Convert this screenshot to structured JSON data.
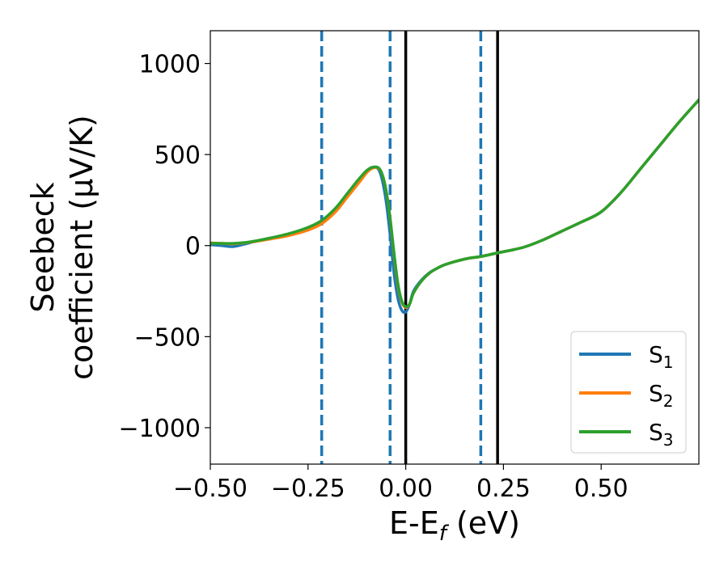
{
  "chart_data": {
    "type": "line",
    "title": "",
    "xlabel": "E-E",
    "xlabel_sub": "f",
    "xlabel_unit": " (eV)",
    "ylabel_line1": "Seebeck",
    "ylabel_line2": "coefficient  (μV/K)",
    "xlim": [
      -0.5,
      0.75
    ],
    "ylim": [
      -1200,
      1180
    ],
    "xticks": [
      -0.5,
      -0.25,
      0.0,
      0.25,
      0.5
    ],
    "xtick_labels": [
      "−0.50",
      "−0.25",
      "0.00",
      "0.25",
      "0.50"
    ],
    "yticks": [
      1000,
      500,
      0,
      -500,
      -1000
    ],
    "ytick_labels": [
      "1000",
      "500",
      "0",
      "−500",
      "−1000"
    ],
    "grid": false,
    "legend_position": "bottom-right",
    "vlines_dashed": {
      "color": "#1f77b4",
      "x": [
        -0.215,
        -0.04,
        0.192
      ]
    },
    "vlines_solid": {
      "color": "#000000",
      "x": [
        0.0,
        0.235
      ]
    },
    "series": [
      {
        "name": "S",
        "name_sub": "1",
        "color": "#1f77b4",
        "x": [
          -0.5,
          -0.47,
          -0.44,
          -0.4,
          -0.35,
          -0.3,
          -0.25,
          -0.215,
          -0.18,
          -0.15,
          -0.12,
          -0.1,
          -0.085,
          -0.07,
          -0.06,
          -0.05,
          -0.04,
          -0.03,
          -0.02,
          -0.01,
          0.0,
          0.01,
          0.02,
          0.04,
          0.06,
          0.08,
          0.1,
          0.13,
          0.16,
          0.192,
          0.235,
          0.3,
          0.35,
          0.4,
          0.45,
          0.5,
          0.55,
          0.6,
          0.65,
          0.7,
          0.75
        ],
        "y": [
          5,
          0,
          -5,
          15,
          40,
          60,
          95,
          130,
          200,
          280,
          360,
          410,
          430,
          420,
          360,
          240,
          60,
          -150,
          -290,
          -355,
          -365,
          -320,
          -250,
          -190,
          -150,
          -125,
          -105,
          -85,
          -70,
          -60,
          -40,
          -10,
          30,
          80,
          130,
          185,
          290,
          420,
          550,
          680,
          800
        ]
      },
      {
        "name": "S",
        "name_sub": "2",
        "color": "#ff7f0e",
        "x": [
          -0.5,
          -0.47,
          -0.44,
          -0.4,
          -0.35,
          -0.3,
          -0.25,
          -0.215,
          -0.18,
          -0.15,
          -0.12,
          -0.1,
          -0.085,
          -0.07,
          -0.06,
          -0.05,
          -0.04,
          -0.03,
          -0.02,
          -0.01,
          0.0,
          0.01,
          0.02,
          0.04,
          0.06,
          0.08,
          0.1,
          0.13,
          0.16,
          0.192,
          0.235,
          0.3,
          0.35,
          0.4,
          0.45,
          0.5,
          0.55,
          0.6,
          0.65,
          0.7,
          0.75
        ],
        "y": [
          15,
          12,
          10,
          18,
          35,
          55,
          85,
          120,
          185,
          265,
          345,
          400,
          425,
          425,
          390,
          300,
          150,
          -50,
          -220,
          -310,
          -340,
          -320,
          -260,
          -195,
          -152,
          -125,
          -105,
          -85,
          -70,
          -60,
          -40,
          -10,
          30,
          80,
          130,
          185,
          290,
          420,
          550,
          680,
          800
        ]
      },
      {
        "name": "S",
        "name_sub": "3",
        "color": "#2ca02c",
        "x": [
          -0.5,
          -0.47,
          -0.44,
          -0.4,
          -0.35,
          -0.3,
          -0.25,
          -0.215,
          -0.18,
          -0.15,
          -0.12,
          -0.1,
          -0.085,
          -0.07,
          -0.06,
          -0.05,
          -0.04,
          -0.03,
          -0.02,
          -0.01,
          0.0,
          0.01,
          0.02,
          0.04,
          0.06,
          0.08,
          0.1,
          0.13,
          0.16,
          0.192,
          0.235,
          0.3,
          0.35,
          0.4,
          0.45,
          0.5,
          0.55,
          0.6,
          0.65,
          0.7,
          0.75
        ],
        "y": [
          12,
          12,
          12,
          20,
          40,
          65,
          100,
          138,
          205,
          285,
          365,
          412,
          430,
          428,
          390,
          300,
          150,
          -40,
          -210,
          -305,
          -335,
          -320,
          -260,
          -195,
          -152,
          -125,
          -105,
          -85,
          -70,
          -60,
          -40,
          -10,
          30,
          80,
          130,
          185,
          290,
          420,
          550,
          680,
          800
        ]
      }
    ]
  }
}
